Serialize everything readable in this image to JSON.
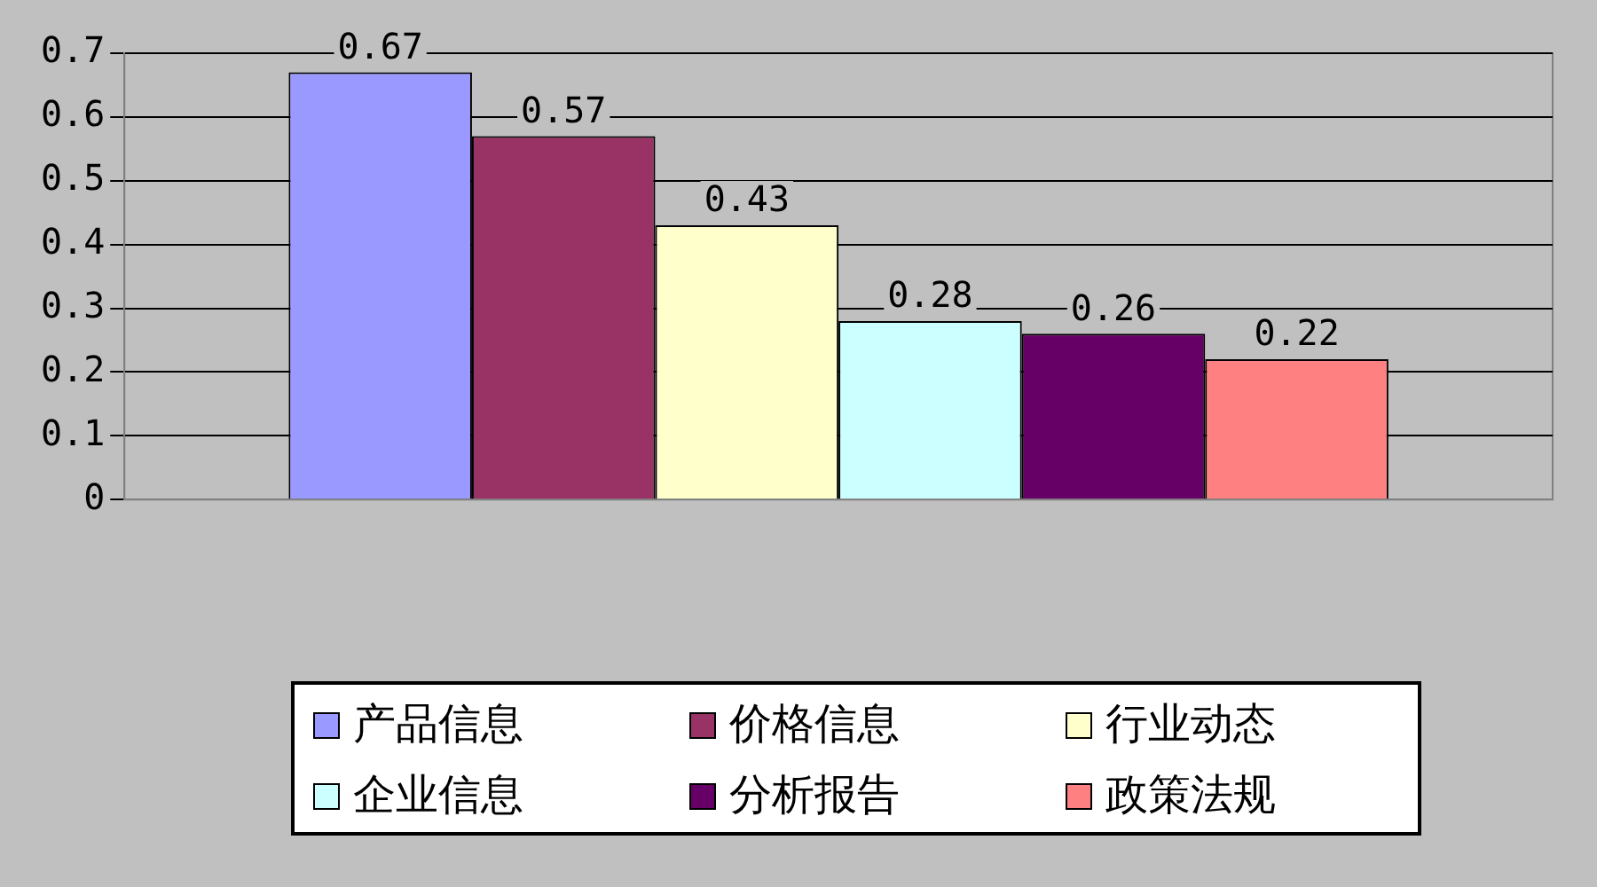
{
  "chart_data": {
    "type": "bar",
    "categories": [
      null
    ],
    "series": [
      {
        "name": "产品信息",
        "color": "#9999ff",
        "values": [
          0.67
        ]
      },
      {
        "name": "价格信息",
        "color": "#993366",
        "values": [
          0.57
        ]
      },
      {
        "name": "行业动态",
        "color": "#ffffcc",
        "values": [
          0.43
        ]
      },
      {
        "name": "企业信息",
        "color": "#ccffff",
        "values": [
          0.28
        ]
      },
      {
        "name": "分析报告",
        "color": "#660066",
        "values": [
          0.26
        ]
      },
      {
        "name": "政策法规",
        "color": "#ff8080",
        "values": [
          0.22
        ]
      }
    ],
    "ylim": [
      0,
      0.7
    ],
    "yticks": [
      0,
      0.1,
      0.2,
      0.3,
      0.4,
      0.5,
      0.6,
      0.7
    ],
    "grid": "y",
    "legend": "bottom",
    "data_labels": true
  }
}
